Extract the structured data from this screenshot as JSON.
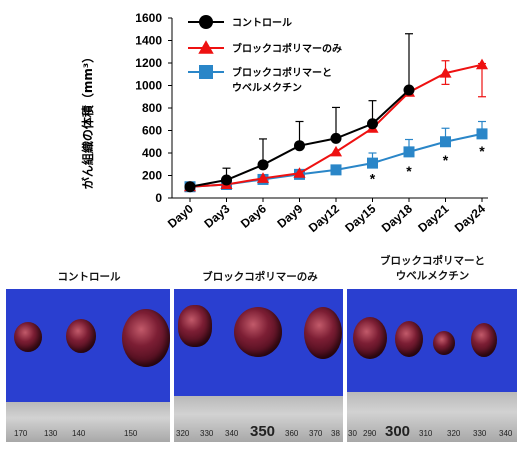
{
  "chart_data": {
    "type": "line",
    "title": "",
    "ylabel": "がん組織の体積（mm³）",
    "xlabel": "",
    "ylim": [
      0,
      1600
    ],
    "y_ticks": [
      0,
      200,
      400,
      600,
      800,
      1000,
      1200,
      1400,
      1600
    ],
    "categories": [
      "Day0",
      "Day3",
      "Day6",
      "Day9",
      "Day12",
      "Day15",
      "Day18",
      "Day21",
      "Day24"
    ],
    "legend_position": "top-right",
    "series": [
      {
        "name": "コントロール",
        "color": "#000000",
        "marker": "circle",
        "values": [
          100,
          160,
          295,
          465,
          530,
          660,
          960,
          null,
          null
        ],
        "error_upper": [
          null,
          265,
          525,
          680,
          805,
          865,
          1460,
          null,
          null
        ]
      },
      {
        "name": "ブロックコポリマーのみ",
        "color": "#ee1111",
        "marker": "triangle",
        "values": [
          100,
          120,
          175,
          220,
          410,
          620,
          940,
          1110,
          1185
        ],
        "error_upper": [
          null,
          null,
          null,
          null,
          null,
          null,
          null,
          1220,
          1195
        ],
        "error_lower": [
          null,
          null,
          null,
          null,
          null,
          null,
          null,
          1010,
          900
        ]
      },
      {
        "name": "ブロックコポリマーとウベルメクチン",
        "name_lines": [
          "ブロックコポリマーと",
          "ウベルメクチン"
        ],
        "color": "#2a86c8",
        "marker": "square",
        "values": [
          100,
          120,
          165,
          210,
          250,
          310,
          410,
          500,
          570
        ],
        "error_upper": [
          null,
          null,
          null,
          null,
          null,
          400,
          520,
          620,
          680
        ]
      }
    ],
    "significance_marks": [
      {
        "category": "Day15",
        "value": 175,
        "label": "*"
      },
      {
        "category": "Day18",
        "value": 240,
        "label": "*"
      },
      {
        "category": "Day21",
        "value": 340,
        "label": "*"
      },
      {
        "category": "Day24",
        "value": 420,
        "label": "*"
      }
    ]
  },
  "photos": {
    "labels": {
      "control": "コントロール",
      "copolymer": "ブロックコポリマーのみ",
      "combo_line1": "ブロックコポリマーと",
      "combo_line2": "ウベルメクチン"
    },
    "ruler_numbers": {
      "control": [
        "170",
        "130",
        "140",
        "150"
      ],
      "copolymer": [
        "320",
        "330",
        "340",
        "350",
        "360",
        "370",
        "38"
      ],
      "combo": [
        "30",
        "290",
        "300",
        "310",
        "320",
        "330",
        "340"
      ]
    },
    "ruler_big": {
      "copolymer": "350",
      "combo": "300"
    }
  }
}
